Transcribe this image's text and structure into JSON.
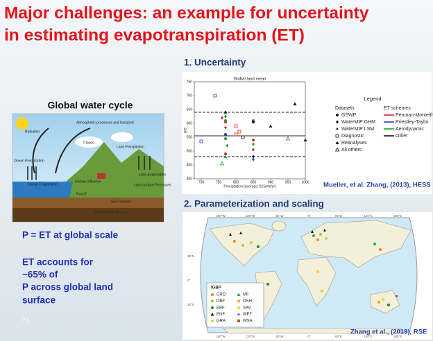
{
  "title": [
    "Major challenges: an example for uncertainty",
    "in estimating evapotranspiration (ET)"
  ],
  "left": {
    "heading": "Global water cycle",
    "diagram_labels": [
      "Radiation",
      "Atmospheric processes and transport",
      "Clouds",
      "Land Precipitation",
      "Ocean Precipitation",
      "Ocean Evaporation",
      "Land Evaporation",
      "Human Influence",
      "Land surface Processes",
      "Runoff",
      "Soil moisture",
      "Ground water Storage"
    ],
    "statement": "P = ET at global scale",
    "note": [
      "ET accounts for",
      "~65% of",
      "P across global land",
      "surface"
    ],
    "page": "7 |"
  },
  "uncertainty": {
    "heading": "1. Uncertainty",
    "citation": "Mueller, et al. Zhang, (2013), HESS",
    "chart_data": {
      "type": "scatter",
      "title": "Global land mean",
      "xlabel": "Precipitation (average: 815mm/yr)",
      "ylabel": "ET",
      "xlim": [
        680,
        1000
      ],
      "ylim": [
        400,
        750
      ],
      "xticks": [
        700,
        750,
        800,
        850,
        900,
        950,
        1000
      ],
      "yticks": [
        400,
        450,
        500,
        550,
        600,
        650,
        700,
        750
      ],
      "reference_lines": [
        {
          "value": 640,
          "style": "dashed"
        },
        {
          "value": 555,
          "style": "solid"
        },
        {
          "value": 480,
          "style": "dashed"
        }
      ],
      "legend_title": "Legend",
      "datasets_title": "Datasets",
      "datasets": [
        {
          "name": "GSWP",
          "marker": "circle"
        },
        {
          "name": "WaterMIP GHM",
          "marker": "diamond"
        },
        {
          "name": "WaterMIP LSM",
          "marker": "diamond"
        },
        {
          "name": "Diagnostic",
          "marker": "open-square"
        },
        {
          "name": "Reanalyses",
          "marker": "triangle"
        },
        {
          "name": "All others",
          "marker": "open-triangle"
        }
      ],
      "schemes_title": "ET schemes",
      "series": [
        {
          "name": "Penman-Monteith",
          "color": "#e02020",
          "x": [
            760,
            770,
            770,
            800,
            810,
            800,
            850,
            770,
            850
          ],
          "values": [
            620,
            605,
            585,
            590,
            570,
            560,
            540,
            490,
            505
          ],
          "markers": [
            "diamond",
            "circle",
            "diamond",
            "open-square",
            "open-square",
            "open-square",
            "circle",
            "circle",
            "diamond"
          ]
        },
        {
          "name": "Priestley-Taylor",
          "color": "#2040c0",
          "x": [
            740,
            700,
            850,
            770
          ],
          "values": [
            700,
            535,
            470,
            560
          ],
          "markers": [
            "open-square",
            "open-square",
            "diamond",
            "circle"
          ]
        },
        {
          "name": "Aerodynamic",
          "color": "#20a020",
          "x": [
            770,
            770,
            770,
            770,
            775,
            770,
            850,
            950,
            760,
            850
          ],
          "values": [
            640,
            625,
            610,
            545,
            520,
            480,
            525,
            545,
            455,
            610
          ],
          "markers": [
            "triangle",
            "diamond",
            "circle",
            "circle",
            "diamond",
            "triangle",
            "diamond",
            "open-triangle",
            "open-triangle",
            "circle"
          ]
        },
        {
          "name": "Other",
          "color": "#111111",
          "x": [
            850,
            900,
            970,
            1000,
            850,
            770,
            820
          ],
          "values": [
            605,
            590,
            670,
            540,
            480,
            640,
            550
          ],
          "markers": [
            "circle",
            "triangle",
            "triangle",
            "triangle",
            "diamond",
            "diamond",
            "open-square"
          ]
        }
      ]
    }
  },
  "scaling": {
    "heading": "2. Parameterization and scaling",
    "lon_labels": [
      "180°W",
      "120°W",
      "60°W",
      "0°",
      "60°E",
      "120°E",
      "180°E"
    ],
    "lat_labels": [
      "30°N",
      "0°",
      "30°S"
    ],
    "legend": {
      "title": "IGBP",
      "items": [
        {
          "name": "CRO",
          "color": "#f08a1c",
          "marker": "circle"
        },
        {
          "name": "DBF",
          "color": "#9ad04a",
          "marker": "circle"
        },
        {
          "name": "EBF",
          "color": "#1e8a2e",
          "marker": "circle"
        },
        {
          "name": "ENF",
          "color": "#111111",
          "marker": "triangle"
        },
        {
          "name": "GRA",
          "color": "#c8d640",
          "marker": "circle"
        },
        {
          "name": "MF",
          "color": "#2eaa3a",
          "marker": "triangle"
        },
        {
          "name": "OSH",
          "color": "#f2a23a",
          "marker": "circle"
        },
        {
          "name": "SAV",
          "color": "#f2d02a",
          "marker": "circle"
        },
        {
          "name": "WET",
          "color": "#2a7ae0",
          "marker": "plus"
        },
        {
          "name": "WSA",
          "color": "#a8641e",
          "marker": "square"
        }
      ]
    },
    "citation": "Zhang et al., (2019), RSE"
  }
}
